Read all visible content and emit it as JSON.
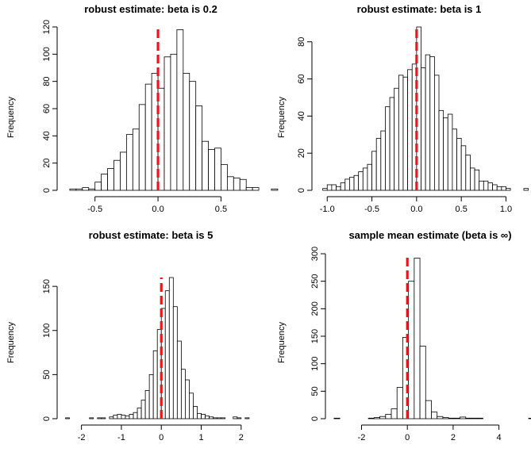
{
  "chart_data": [
    {
      "type": "bar",
      "title": "robust estimate: beta is 0.2",
      "xlabel": "",
      "ylabel": "Frequency",
      "xlim": [
        -0.75,
        0.85
      ],
      "ylim": [
        0,
        120
      ],
      "xticks": [
        -0.5,
        0.0,
        0.5
      ],
      "xtick_labels": [
        "-0.5",
        "0.0",
        "0.5"
      ],
      "yticks": [
        0,
        20,
        40,
        60,
        80,
        100,
        120
      ],
      "ytick_labels": [
        "0",
        "20",
        "40",
        "60",
        "80",
        "100",
        "120"
      ],
      "bin_start": -0.7,
      "bin_width": 0.05,
      "values": [
        1,
        1,
        2,
        1,
        6,
        12,
        16,
        22,
        28,
        41,
        45,
        63,
        78,
        86,
        75,
        98,
        100,
        118,
        86,
        80,
        62,
        36,
        30,
        31,
        19,
        10,
        9,
        8,
        2,
        2,
        0,
        0,
        1
      ],
      "reference_line": {
        "x": 0,
        "color": "#e8161f",
        "style": "dashed"
      },
      "grid": false
    },
    {
      "type": "bar",
      "title": "robust estimate: beta is 1",
      "xlabel": "",
      "ylabel": "Frequency",
      "xlim": [
        -1.1,
        1.28
      ],
      "ylim": [
        0,
        88
      ],
      "xticks": [
        -1.0,
        -0.5,
        0.0,
        0.5,
        1.0
      ],
      "xtick_labels": [
        "-1.0",
        "-0.5",
        "0.0",
        "0.5",
        "1.0"
      ],
      "yticks": [
        0,
        20,
        40,
        60,
        80
      ],
      "ytick_labels": [
        "0",
        "20",
        "40",
        "60",
        "80"
      ],
      "bin_start": -1.05,
      "bin_width": 0.05,
      "values": [
        1,
        3,
        3,
        2,
        4,
        6,
        7,
        8,
        10,
        12,
        14,
        21,
        28,
        32,
        45,
        50,
        55,
        62,
        61,
        65,
        68,
        88,
        66,
        73,
        72,
        62,
        43,
        39,
        41,
        33,
        28,
        24,
        19,
        12,
        11,
        5,
        5,
        4,
        3,
        2,
        2,
        1,
        0,
        0,
        0,
        1
      ],
      "reference_line": {
        "x": 0,
        "color": "#e8161f",
        "style": "dashed"
      },
      "grid": false
    },
    {
      "type": "bar",
      "title": "robust estimate: beta is 5",
      "xlabel": "",
      "ylabel": "Frequency",
      "xlim": [
        -2.45,
        2.6
      ],
      "ylim": [
        0,
        160
      ],
      "xticks": [
        -2,
        -1,
        0,
        1,
        2
      ],
      "xtick_labels": [
        "-2",
        "-1",
        "0",
        "1",
        "2"
      ],
      "yticks": [
        0,
        50,
        100,
        150
      ],
      "ytick_labels": [
        "0",
        "50",
        "100",
        "150"
      ],
      "bin_start": -2.4,
      "bin_width": 0.1,
      "values": [
        1,
        0,
        0,
        0,
        0,
        0,
        1,
        0,
        1,
        1,
        0,
        2,
        4,
        5,
        4,
        3,
        5,
        7,
        12,
        21,
        32,
        50,
        77,
        101,
        125,
        145,
        160,
        127,
        88,
        56,
        44,
        29,
        14,
        6,
        5,
        3,
        2,
        1,
        1,
        1,
        0,
        0,
        2,
        1,
        0,
        1,
        0,
        0,
        0,
        0
      ],
      "reference_line": {
        "x": 0,
        "color": "#e8161f",
        "style": "dashed"
      },
      "grid": false
    },
    {
      "type": "bar",
      "title": "sample mean estimate (beta is ∞)",
      "xlabel": "",
      "ylabel": "Frequency",
      "xlim": [
        -3.3,
        5.4
      ],
      "ylim": [
        0,
        300
      ],
      "xticks": [
        -2,
        0,
        2,
        4
      ],
      "xtick_labels": [
        "-2",
        "0",
        "2",
        "4"
      ],
      "yticks": [
        0,
        50,
        100,
        150,
        200,
        250,
        300
      ],
      "ytick_labels": [
        "0",
        "50",
        "100",
        "150",
        "200",
        "250",
        "300"
      ],
      "bin_start": -3.2,
      "bin_width": 0.25,
      "values": [
        1,
        0,
        0,
        0,
        0,
        0,
        1,
        2,
        4,
        8,
        18,
        57,
        148,
        250,
        292,
        132,
        33,
        12,
        4,
        2,
        1,
        1,
        3,
        1,
        1,
        1,
        0,
        0,
        0,
        0,
        0,
        0,
        0,
        0,
        1
      ],
      "reference_line": {
        "x": 0,
        "color": "#e8161f",
        "style": "dashed"
      },
      "grid": false
    }
  ]
}
